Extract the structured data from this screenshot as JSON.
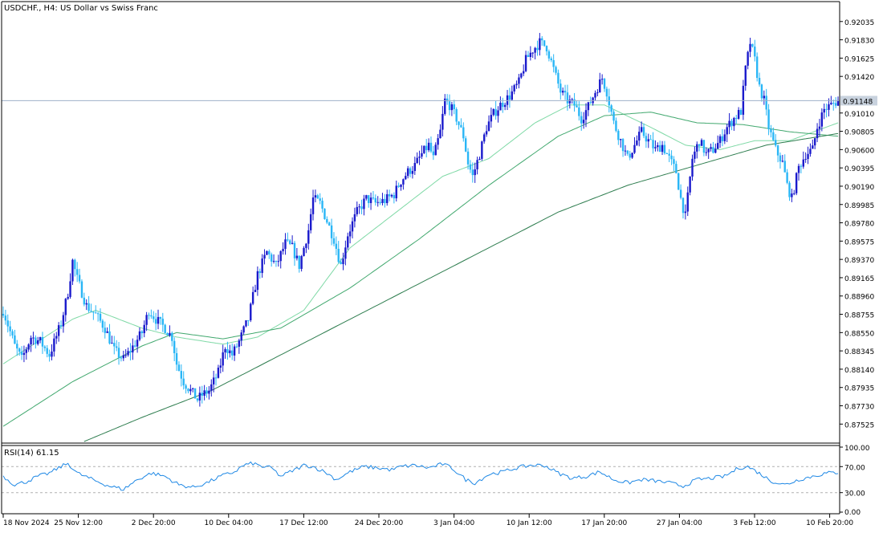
{
  "chart_title": "USDCHF., H4:  US Dollar vs Swiss Franc",
  "rsi_label": "RSI(14) 61.15",
  "current_price": "0.91148",
  "colors": {
    "bull_candle": "#1a1acc",
    "bear_candle": "#29b6f6",
    "ma_fast": "#7fd9a6",
    "ma_mid": "#41a86e",
    "ma_slow": "#2e7d4f",
    "rsi_line": "#1e88e5",
    "grid_frame": "#000000",
    "price_line": "#9fb0c8"
  },
  "chart_data": [
    {
      "type": "candlestick",
      "title": "USDCHF., H4:  US Dollar vs Swiss Franc",
      "y_ticks": [
        "0.92035",
        "0.91830",
        "0.91625",
        "0.91420",
        "0.91215",
        "0.91010",
        "0.90805",
        "0.90600",
        "0.90395",
        "0.90190",
        "0.89985",
        "0.89780",
        "0.89575",
        "0.89370",
        "0.89165",
        "0.88960",
        "0.88755",
        "0.88550",
        "0.88345",
        "0.88140",
        "0.87935",
        "0.87730",
        "0.87525"
      ],
      "ylim": [
        0.8733,
        0.9224
      ],
      "x_ticks": [
        "18 Nov 2024",
        "25 Nov 12:00",
        "2 Dec 20:00",
        "10 Dec 04:00",
        "17 Dec 12:00",
        "24 Dec 20:00",
        "3 Jan 04:00",
        "10 Jan 12:00",
        "17 Jan 20:00",
        "27 Jan 04:00",
        "3 Feb 12:00",
        "10 Feb 20:00"
      ],
      "price_anchors": [
        [
          0,
          0.888
        ],
        [
          5,
          0.884
        ],
        [
          8,
          0.8825
        ],
        [
          12,
          0.885
        ],
        [
          16,
          0.8845
        ],
        [
          20,
          0.883
        ],
        [
          25,
          0.8865
        ],
        [
          28,
          0.89
        ],
        [
          30,
          0.8935
        ],
        [
          32,
          0.8915
        ],
        [
          36,
          0.8885
        ],
        [
          40,
          0.8875
        ],
        [
          44,
          0.886
        ],
        [
          48,
          0.8835
        ],
        [
          52,
          0.8825
        ],
        [
          55,
          0.8835
        ],
        [
          60,
          0.8855
        ],
        [
          63,
          0.888
        ],
        [
          66,
          0.887
        ],
        [
          70,
          0.886
        ],
        [
          73,
          0.885
        ],
        [
          75,
          0.882
        ],
        [
          78,
          0.88
        ],
        [
          81,
          0.879
        ],
        [
          84,
          0.878
        ],
        [
          86,
          0.8785
        ],
        [
          89,
          0.879
        ],
        [
          93,
          0.881
        ],
        [
          96,
          0.884
        ],
        [
          99,
          0.883
        ],
        [
          102,
          0.8845
        ],
        [
          106,
          0.887
        ],
        [
          110,
          0.892
        ],
        [
          114,
          0.8945
        ],
        [
          118,
          0.893
        ],
        [
          122,
          0.8955
        ],
        [
          125,
          0.895
        ],
        [
          128,
          0.893
        ],
        [
          132,
          0.897
        ],
        [
          134,
          0.9005
        ],
        [
          137,
          0.9
        ],
        [
          140,
          0.898
        ],
        [
          143,
          0.896
        ],
        [
          146,
          0.893
        ],
        [
          149,
          0.8965
        ],
        [
          153,
          0.899
        ],
        [
          157,
          0.9005
        ],
        [
          161,
          0.9
        ],
        [
          165,
          0.9003
        ],
        [
          169,
          0.901
        ],
        [
          172,
          0.9025
        ],
        [
          175,
          0.9035
        ],
        [
          178,
          0.9042
        ],
        [
          181,
          0.9055
        ],
        [
          184,
          0.9065
        ],
        [
          186,
          0.905
        ],
        [
          189,
          0.908
        ],
        [
          191,
          0.9115
        ],
        [
          193,
          0.911
        ],
        [
          196,
          0.9095
        ],
        [
          199,
          0.9075
        ],
        [
          201,
          0.9045
        ],
        [
          203,
          0.903
        ],
        [
          206,
          0.9055
        ],
        [
          209,
          0.9085
        ],
        [
          212,
          0.91
        ],
        [
          215,
          0.911
        ],
        [
          219,
          0.912
        ],
        [
          223,
          0.9135
        ],
        [
          226,
          0.916
        ],
        [
          229,
          0.9172
        ],
        [
          232,
          0.918
        ],
        [
          235,
          0.9175
        ],
        [
          238,
          0.915
        ],
        [
          241,
          0.9125
        ],
        [
          244,
          0.9115
        ],
        [
          247,
          0.911
        ],
        [
          250,
          0.9095
        ],
        [
          253,
          0.9108
        ],
        [
          256,
          0.9125
        ],
        [
          259,
          0.914
        ],
        [
          261,
          0.9125
        ],
        [
          264,
          0.909
        ],
        [
          267,
          0.907
        ],
        [
          270,
          0.905
        ],
        [
          273,
          0.9065
        ],
        [
          276,
          0.908
        ],
        [
          279,
          0.907
        ],
        [
          282,
          0.906
        ],
        [
          285,
          0.9065
        ],
        [
          288,
          0.905
        ],
        [
          291,
          0.9035
        ],
        [
          293,
          0.9005
        ],
        [
          295,
          0.8985
        ],
        [
          298,
          0.905
        ],
        [
          301,
          0.907
        ],
        [
          304,
          0.9055
        ],
        [
          307,
          0.906
        ],
        [
          310,
          0.907
        ],
        [
          313,
          0.9085
        ],
        [
          316,
          0.9095
        ],
        [
          319,
          0.9103
        ],
        [
          321,
          0.915
        ],
        [
          323,
          0.918
        ],
        [
          325,
          0.916
        ],
        [
          327,
          0.913
        ],
        [
          329,
          0.9115
        ],
        [
          331,
          0.9085
        ],
        [
          334,
          0.906
        ],
        [
          337,
          0.9045
        ],
        [
          339,
          0.902
        ],
        [
          341,
          0.9005
        ],
        [
          344,
          0.904
        ],
        [
          347,
          0.9055
        ],
        [
          350,
          0.906
        ],
        [
          352,
          0.9085
        ],
        [
          355,
          0.9105
        ],
        [
          358,
          0.911
        ],
        [
          361,
          0.9115
        ]
      ],
      "moving_averages": [
        {
          "anchors": [
            [
              0,
              0.882
            ],
            [
              30,
              0.887
            ],
            [
              40,
              0.888
            ],
            [
              60,
              0.886
            ],
            [
              75,
              0.885
            ],
            [
              95,
              0.8842
            ],
            [
              110,
              0.885
            ],
            [
              130,
              0.888
            ],
            [
              150,
              0.895
            ],
            [
              170,
              0.899
            ],
            [
              190,
              0.903
            ],
            [
              210,
              0.905
            ],
            [
              230,
              0.909
            ],
            [
              245,
              0.911
            ],
            [
              260,
              0.911
            ],
            [
              280,
              0.9085
            ],
            [
              295,
              0.9065
            ],
            [
              310,
              0.906
            ],
            [
              325,
              0.907
            ],
            [
              340,
              0.907
            ],
            [
              361,
              0.909
            ]
          ]
        },
        {
          "anchors": [
            [
              0,
              0.875
            ],
            [
              30,
              0.88
            ],
            [
              60,
              0.884
            ],
            [
              75,
              0.8855
            ],
            [
              95,
              0.8848
            ],
            [
              120,
              0.886
            ],
            [
              150,
              0.8905
            ],
            [
              180,
              0.896
            ],
            [
              210,
              0.902
            ],
            [
              240,
              0.9075
            ],
            [
              260,
              0.9098
            ],
            [
              280,
              0.9102
            ],
            [
              300,
              0.909
            ],
            [
              320,
              0.9088
            ],
            [
              340,
              0.908
            ],
            [
              361,
              0.9075
            ]
          ]
        },
        {
          "anchors": [
            [
              35,
              0.8733
            ],
            [
              60,
              0.876
            ],
            [
              90,
              0.879
            ],
            [
              120,
              0.883
            ],
            [
              150,
              0.887
            ],
            [
              180,
              0.891
            ],
            [
              210,
              0.895
            ],
            [
              240,
              0.899
            ],
            [
              270,
              0.902
            ],
            [
              290,
              0.9035
            ],
            [
              310,
              0.905
            ],
            [
              330,
              0.9065
            ],
            [
              361,
              0.9078
            ]
          ]
        }
      ]
    },
    {
      "type": "line",
      "title": "RSI(14) 61.15",
      "y_ticks": [
        "100.00",
        "70.00",
        "30.00",
        "0.00"
      ],
      "ylim": [
        0,
        100
      ],
      "levels": [
        70,
        30
      ],
      "value_anchors": [
        [
          0,
          55
        ],
        [
          5,
          42
        ],
        [
          10,
          47
        ],
        [
          15,
          55
        ],
        [
          20,
          60
        ],
        [
          25,
          70
        ],
        [
          28,
          75
        ],
        [
          32,
          60
        ],
        [
          40,
          48
        ],
        [
          46,
          40
        ],
        [
          52,
          35
        ],
        [
          58,
          50
        ],
        [
          64,
          60
        ],
        [
          70,
          55
        ],
        [
          76,
          42
        ],
        [
          82,
          38
        ],
        [
          88,
          45
        ],
        [
          94,
          55
        ],
        [
          100,
          62
        ],
        [
          104,
          72
        ],
        [
          108,
          75
        ],
        [
          112,
          70
        ],
        [
          116,
          68
        ],
        [
          120,
          55
        ],
        [
          126,
          65
        ],
        [
          130,
          72
        ],
        [
          134,
          70
        ],
        [
          140,
          60
        ],
        [
          144,
          50
        ],
        [
          150,
          62
        ],
        [
          156,
          70
        ],
        [
          162,
          68
        ],
        [
          168,
          65
        ],
        [
          172,
          70
        ],
        [
          178,
          72
        ],
        [
          184,
          68
        ],
        [
          190,
          74
        ],
        [
          194,
          68
        ],
        [
          200,
          50
        ],
        [
          204,
          45
        ],
        [
          210,
          58
        ],
        [
          216,
          62
        ],
        [
          222,
          68
        ],
        [
          228,
          72
        ],
        [
          234,
          72
        ],
        [
          240,
          60
        ],
        [
          246,
          52
        ],
        [
          252,
          55
        ],
        [
          258,
          62
        ],
        [
          264,
          50
        ],
        [
          270,
          45
        ],
        [
          276,
          50
        ],
        [
          282,
          48
        ],
        [
          288,
          45
        ],
        [
          294,
          40
        ],
        [
          300,
          50
        ],
        [
          306,
          52
        ],
        [
          312,
          55
        ],
        [
          318,
          68
        ],
        [
          322,
          70
        ],
        [
          326,
          62
        ],
        [
          332,
          48
        ],
        [
          338,
          42
        ],
        [
          344,
          50
        ],
        [
          350,
          55
        ],
        [
          356,
          60
        ],
        [
          361,
          61
        ]
      ]
    }
  ]
}
